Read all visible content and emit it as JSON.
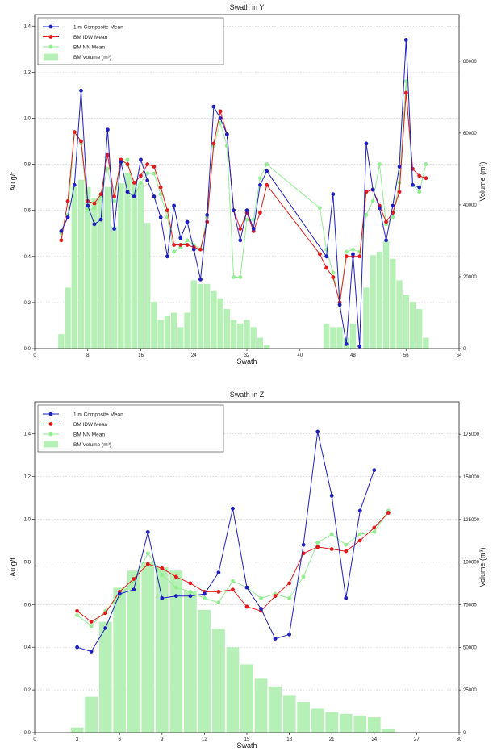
{
  "chart_data": [
    {
      "type": "bar+line",
      "title": "Swath in Y",
      "xlabel": "Swath",
      "ylabel": "Au g/t",
      "y2label": "Volume (m³)",
      "xlim": [
        0,
        64
      ],
      "ylim": [
        0,
        1.45
      ],
      "y2lim": [
        0,
        93000
      ],
      "xticks": [
        "0",
        "8",
        "16",
        "24",
        "32",
        "40",
        "48",
        "56",
        "64"
      ],
      "yticks": [
        "0.0",
        "0.2",
        "0.4",
        "0.6",
        "0.8",
        "1.0",
        "1.2",
        "1.4"
      ],
      "y2ticks": [
        "0",
        "20000",
        "40000",
        "60000",
        "80000"
      ],
      "legend": {
        "position": "top-left",
        "entries": [
          "1 m Composite Mean",
          "BM IDW Mean",
          "BM NN Mean",
          "BM Volume (m³)"
        ]
      },
      "colors": {
        "composite": "#1f1fbf",
        "idw": "#e31a1c",
        "nn": "#90ee90",
        "volume": "#b7f0b7"
      },
      "volume": {
        "x": [
          4,
          5,
          6,
          7,
          8,
          9,
          10,
          11,
          12,
          13,
          14,
          15,
          16,
          17,
          18,
          19,
          20,
          21,
          22,
          23,
          24,
          25,
          26,
          27,
          28,
          29,
          30,
          31,
          32,
          33,
          34,
          35,
          44,
          45,
          46,
          47,
          48,
          49,
          50,
          51,
          52,
          53,
          54,
          55,
          56,
          57,
          58,
          59
        ],
        "values": [
          4000,
          17000,
          45000,
          47000,
          45000,
          42000,
          43000,
          45000,
          34000,
          46000,
          49000,
          46000,
          46000,
          35000,
          13000,
          8000,
          9000,
          10000,
          6000,
          10000,
          19000,
          18000,
          18000,
          16000,
          14000,
          11000,
          8000,
          7000,
          8000,
          6000,
          3000,
          1000,
          7000,
          6000,
          6000,
          3000,
          7000,
          0,
          17000,
          26000,
          27000,
          30000,
          25000,
          19000,
          15000,
          13000,
          11000,
          3000
        ]
      },
      "series": [
        {
          "name": "1 m Composite Mean",
          "x": [
            4,
            5,
            6,
            7,
            8,
            9,
            10,
            11,
            12,
            13,
            14,
            15,
            16,
            17,
            18,
            19,
            20,
            21,
            22,
            23,
            24,
            25,
            26,
            27,
            28,
            29,
            30,
            31,
            32,
            33,
            34,
            35,
            44,
            45,
            46,
            47,
            48,
            49,
            50,
            51,
            52,
            53,
            54,
            55,
            56,
            57,
            58
          ],
          "y": [
            0.51,
            0.57,
            0.71,
            1.12,
            0.62,
            0.54,
            0.56,
            0.95,
            0.52,
            0.81,
            0.68,
            0.66,
            0.82,
            0.73,
            0.66,
            0.57,
            0.4,
            0.62,
            0.48,
            0.55,
            0.43,
            0.3,
            0.58,
            1.05,
            1.0,
            0.93,
            0.6,
            0.47,
            0.6,
            0.52,
            0.71,
            0.77,
            0.4,
            0.67,
            0.19,
            0.02,
            0.41,
            0.01,
            0.89,
            0.69,
            0.61,
            0.47,
            0.62,
            0.79,
            1.34,
            0.71,
            0.7
          ]
        },
        {
          "name": "BM IDW Mean",
          "x": [
            4,
            5,
            6,
            7,
            8,
            9,
            10,
            11,
            12,
            13,
            14,
            15,
            16,
            17,
            18,
            19,
            20,
            21,
            22,
            23,
            24,
            25,
            26,
            27,
            28,
            29,
            30,
            31,
            32,
            33,
            34,
            35,
            43,
            44,
            45,
            46,
            47,
            48,
            49,
            50,
            51,
            52,
            53,
            54,
            55,
            56,
            57,
            58,
            59
          ],
          "y": [
            0.47,
            0.64,
            0.94,
            0.9,
            0.64,
            0.63,
            0.67,
            0.84,
            0.66,
            0.82,
            0.8,
            0.72,
            0.75,
            0.8,
            0.79,
            0.7,
            0.6,
            0.45,
            0.45,
            0.45,
            0.44,
            0.43,
            0.55,
            0.89,
            1.03,
            0.93,
            0.6,
            0.52,
            0.59,
            0.51,
            0.59,
            0.71,
            0.41,
            0.35,
            0.31,
            0.2,
            0.4,
            0.4,
            0.4,
            0.68,
            0.69,
            0.62,
            0.55,
            0.59,
            0.68,
            1.11,
            0.78,
            0.75,
            0.74
          ]
        },
        {
          "name": "BM NN Mean",
          "x": [
            4,
            5,
            6,
            7,
            8,
            9,
            10,
            11,
            12,
            13,
            14,
            15,
            16,
            17,
            18,
            19,
            20,
            21,
            22,
            23,
            24,
            25,
            26,
            27,
            28,
            29,
            30,
            31,
            32,
            33,
            34,
            35,
            43,
            44,
            45,
            46,
            47,
            48,
            49,
            50,
            51,
            52,
            53,
            54,
            55,
            56,
            57,
            58,
            59
          ],
          "y": [
            0.5,
            0.58,
            0.94,
            0.89,
            0.6,
            0.61,
            0.66,
            0.78,
            0.64,
            0.8,
            0.82,
            0.66,
            0.72,
            0.76,
            0.76,
            0.67,
            0.57,
            0.42,
            0.44,
            0.47,
            0.45,
            0.43,
            0.57,
            0.88,
            0.98,
            0.88,
            0.31,
            0.31,
            0.56,
            0.56,
            0.74,
            0.8,
            0.61,
            0.43,
            0.33,
            0.19,
            0.42,
            0.43,
            0.42,
            0.58,
            0.64,
            0.8,
            0.54,
            0.57,
            0.72,
            1.16,
            0.71,
            0.68,
            0.8
          ]
        }
      ]
    },
    {
      "type": "bar+line",
      "title": "Swath in Z",
      "xlabel": "Swath",
      "ylabel": "Au g/t",
      "y2label": "Volume (m³)",
      "xlim": [
        0,
        30
      ],
      "ylim": [
        0,
        1.55
      ],
      "y2lim": [
        0,
        194000
      ],
      "xticks": [
        "0",
        "3",
        "6",
        "9",
        "12",
        "15",
        "18",
        "21",
        "24",
        "27",
        "30"
      ],
      "yticks": [
        "0.0",
        "0.2",
        "0.4",
        "0.6",
        "0.8",
        "1.0",
        "1.2",
        "1.4"
      ],
      "y2ticks": [
        "0",
        "25000",
        "50000",
        "75000",
        "100000",
        "125000",
        "150000",
        "175000"
      ],
      "legend": {
        "position": "top-left",
        "entries": [
          "1 m Composite Mean",
          "BM IDW Mean",
          "BM NN Mean",
          "BM Volume (m³)"
        ]
      },
      "colors": {
        "composite": "#1f1fbf",
        "idw": "#e31a1c",
        "nn": "#90ee90",
        "volume": "#b7f0b7"
      },
      "volume": {
        "x": [
          3,
          4,
          5,
          6,
          7,
          8,
          9,
          10,
          11,
          12,
          13,
          14,
          15,
          16,
          17,
          18,
          19,
          20,
          21,
          22,
          23,
          24,
          25
        ],
        "values": [
          3000,
          21000,
          65000,
          85000,
          95000,
          100000,
          97000,
          95000,
          83000,
          72000,
          61000,
          50000,
          40000,
          32000,
          27000,
          22000,
          18000,
          14000,
          12000,
          11000,
          10000,
          9000,
          2000
        ]
      },
      "series": [
        {
          "name": "1 m Composite Mean",
          "x": [
            3,
            4,
            5,
            6,
            7,
            8,
            9,
            10,
            11,
            12,
            13,
            14,
            15,
            16,
            17,
            18,
            19,
            20,
            21,
            22,
            23,
            24
          ],
          "y": [
            0.4,
            0.38,
            0.49,
            0.65,
            0.67,
            0.94,
            0.63,
            0.64,
            0.64,
            0.65,
            0.75,
            1.05,
            0.68,
            0.58,
            0.44,
            0.46,
            0.88,
            1.41,
            1.11,
            0.63,
            1.04,
            1.23
          ]
        },
        {
          "name": "BM IDW Mean",
          "x": [
            3,
            4,
            5,
            6,
            7,
            8,
            9,
            10,
            11,
            12,
            13,
            14,
            15,
            16,
            17,
            18,
            19,
            20,
            21,
            22,
            23,
            24,
            25
          ],
          "y": [
            0.57,
            0.52,
            0.56,
            0.66,
            0.72,
            0.79,
            0.77,
            0.73,
            0.7,
            0.66,
            0.66,
            0.67,
            0.59,
            0.57,
            0.64,
            0.7,
            0.84,
            0.87,
            0.86,
            0.85,
            0.9,
            0.96,
            1.03
          ]
        },
        {
          "name": "BM NN Mean",
          "x": [
            3,
            4,
            5,
            6,
            7,
            8,
            9,
            10,
            11,
            12,
            13,
            14,
            15,
            16,
            17,
            18,
            19,
            20,
            21,
            22,
            23,
            24,
            25
          ],
          "y": [
            0.55,
            0.5,
            0.57,
            0.64,
            0.71,
            0.84,
            0.74,
            0.68,
            0.66,
            0.63,
            0.61,
            0.71,
            0.68,
            0.63,
            0.65,
            0.63,
            0.73,
            0.89,
            0.93,
            0.88,
            0.93,
            0.94,
            1.04
          ]
        }
      ]
    }
  ]
}
